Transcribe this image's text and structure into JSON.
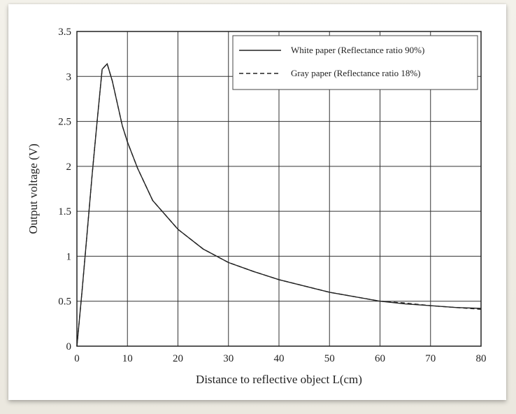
{
  "chart_data": {
    "type": "line",
    "xlabel": "Distance to reflective object L(cm)",
    "ylabel": "Output voltage (V)",
    "xlim": [
      0,
      80
    ],
    "ylim": [
      0,
      3.5
    ],
    "xticks": [
      0,
      10,
      20,
      30,
      40,
      50,
      60,
      70,
      80
    ],
    "yticks": [
      0,
      0.5,
      1,
      1.5,
      2,
      2.5,
      3,
      3.5
    ],
    "xtick_labels": [
      "0",
      "10",
      "20",
      "30",
      "40",
      "50",
      "60",
      "70",
      "80"
    ],
    "ytick_labels": [
      "0",
      "0.5",
      "1",
      "1.5",
      "2",
      "2.5",
      "3",
      "3.5"
    ],
    "grid": true,
    "legend_position": "top-right",
    "series": [
      {
        "name": "White paper (Reflectance ratio 90%)",
        "style": "solid",
        "color": "#222222",
        "x": [
          0,
          1,
          2,
          3,
          4,
          5,
          6,
          7,
          8,
          9,
          10,
          12,
          15,
          20,
          25,
          30,
          35,
          40,
          45,
          50,
          55,
          60,
          65,
          70,
          75,
          80
        ],
        "y": [
          0,
          0.6,
          1.25,
          1.9,
          2.5,
          3.08,
          3.14,
          2.95,
          2.7,
          2.45,
          2.27,
          1.98,
          1.62,
          1.3,
          1.08,
          0.93,
          0.83,
          0.74,
          0.67,
          0.6,
          0.55,
          0.5,
          0.47,
          0.45,
          0.43,
          0.42
        ]
      },
      {
        "name": "Gray paper (Reflectance ratio 18%)",
        "style": "dashed",
        "color": "#222222",
        "x": [
          0,
          1,
          2,
          3,
          4,
          5,
          6,
          7,
          8,
          9,
          10,
          12,
          15,
          20,
          25,
          30,
          35,
          40,
          45,
          50,
          55,
          60,
          65,
          70,
          75,
          80
        ],
        "y": [
          0,
          0.6,
          1.25,
          1.9,
          2.5,
          3.08,
          3.14,
          2.95,
          2.7,
          2.45,
          2.27,
          1.98,
          1.62,
          1.3,
          1.08,
          0.93,
          0.83,
          0.74,
          0.67,
          0.6,
          0.55,
          0.5,
          0.48,
          0.45,
          0.43,
          0.41
        ]
      }
    ]
  }
}
